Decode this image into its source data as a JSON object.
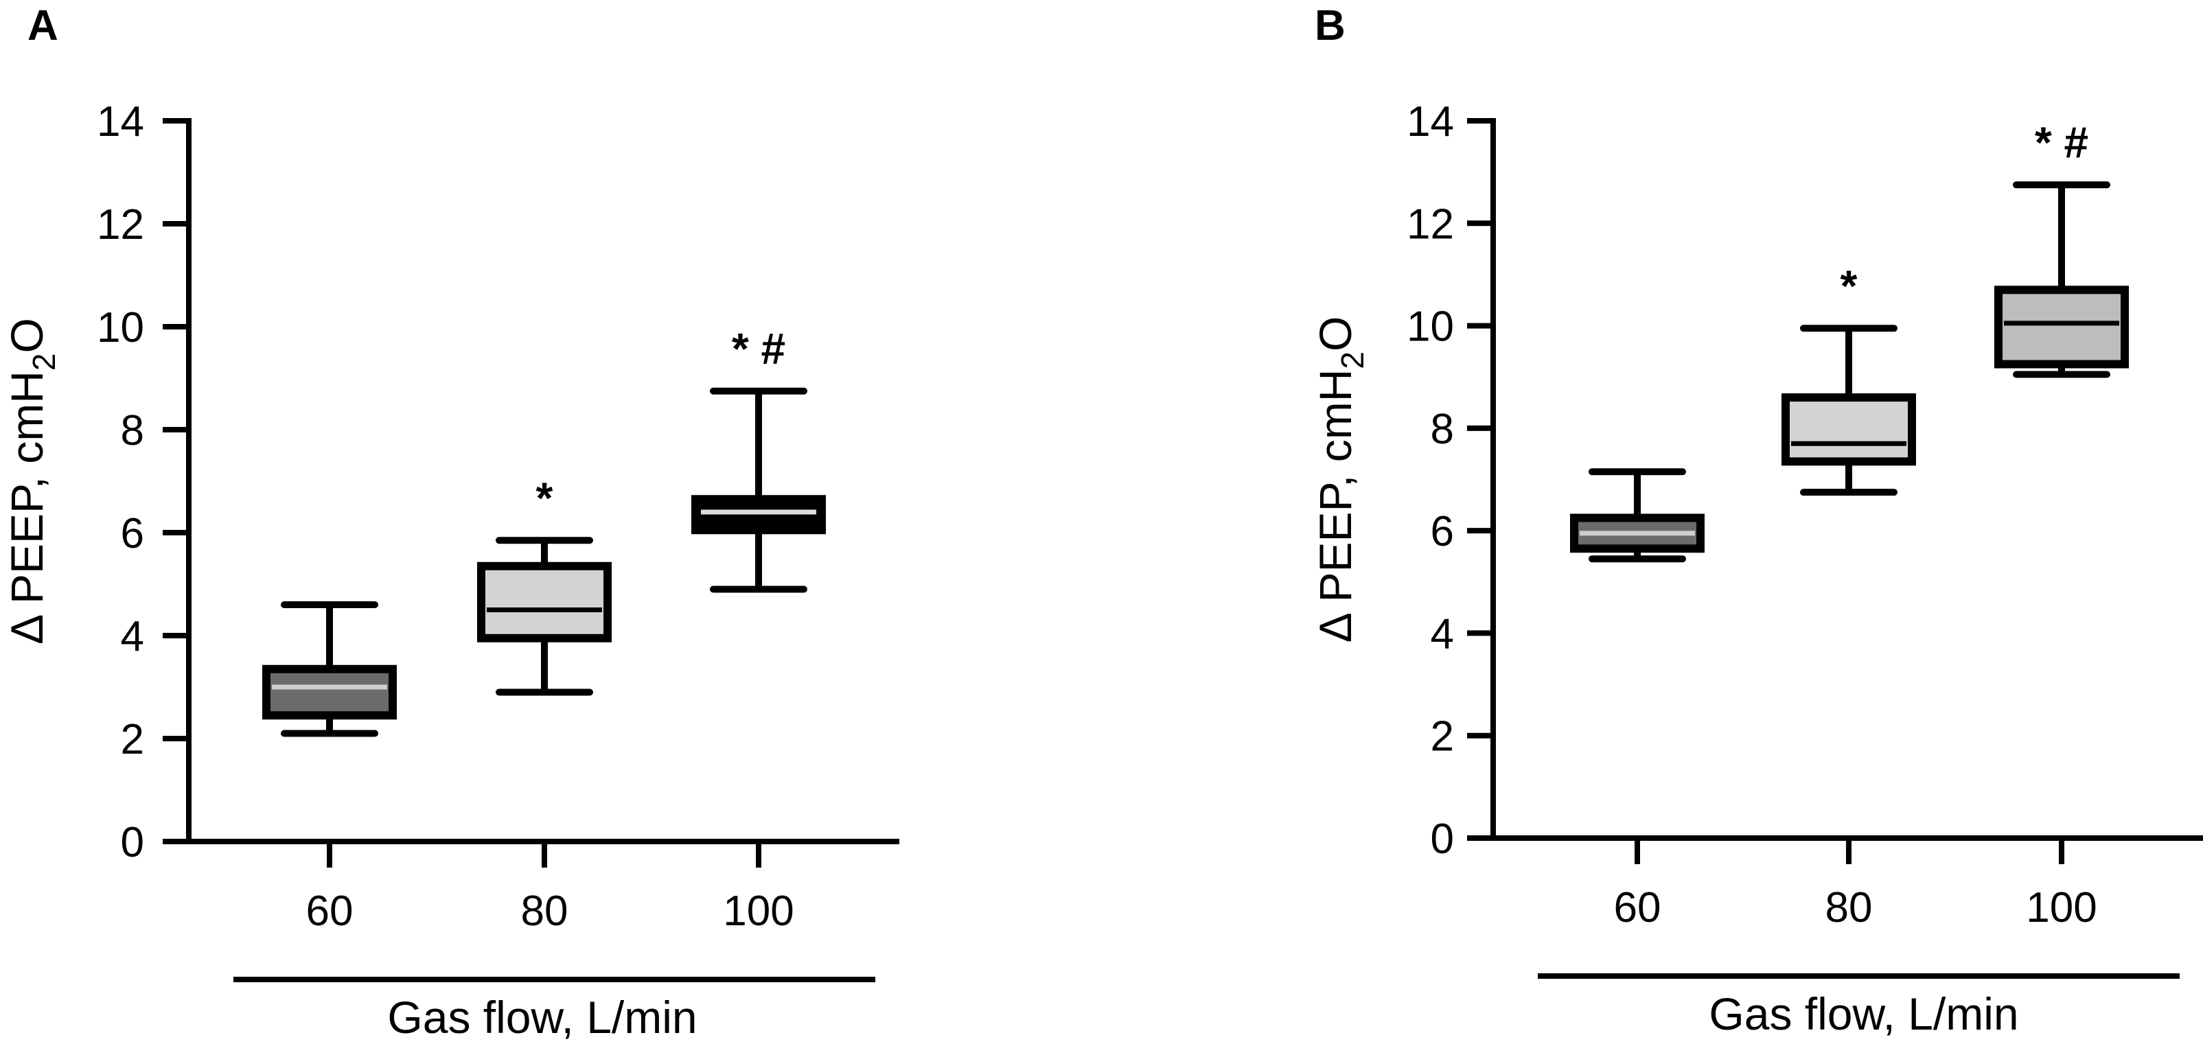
{
  "chart_data": [
    {
      "type": "box",
      "panel_label": "A",
      "categories": [
        "60",
        "80",
        "100"
      ],
      "ylabel": "Δ PEEP, cmH",
      "ylabel_sub": "2",
      "ylabel_end": "O",
      "xlabel": "Gas flow, L/min",
      "ylim": [
        0,
        14
      ],
      "yticks": [
        "0",
        "2",
        "4",
        "6",
        "8",
        "10",
        "12",
        "14"
      ],
      "grid": false,
      "boxes": [
        {
          "category": "60",
          "min": 2.1,
          "q1": 2.45,
          "median": 3.0,
          "q3": 3.35,
          "max": 4.6,
          "fill": "#6b6b6b",
          "median_color": "#cfcfcf",
          "annotation": ""
        },
        {
          "category": "80",
          "min": 2.9,
          "q1": 3.95,
          "median": 4.5,
          "q3": 5.35,
          "max": 5.85,
          "fill": "#d3d3d3",
          "median_color": "#000000",
          "annotation": "*"
        },
        {
          "category": "100",
          "min": 4.9,
          "q1": 6.05,
          "median": 6.4,
          "q3": 6.65,
          "max": 8.75,
          "fill": "#000000",
          "median_color": "#dddddd",
          "annotation": "* #"
        }
      ]
    },
    {
      "type": "box",
      "panel_label": "B",
      "categories": [
        "60",
        "80",
        "100"
      ],
      "ylabel": "Δ PEEP, cmH",
      "ylabel_sub": "2",
      "ylabel_end": "O",
      "xlabel": "Gas flow, L/min",
      "ylim": [
        0,
        14
      ],
      "yticks": [
        "0",
        "2",
        "4",
        "6",
        "8",
        "10",
        "12",
        "14"
      ],
      "grid": false,
      "boxes": [
        {
          "category": "60",
          "min": 5.45,
          "q1": 5.65,
          "median": 5.95,
          "q3": 6.25,
          "max": 7.15,
          "fill": "#6b6b6b",
          "median_color": "#cfcfcf",
          "annotation": ""
        },
        {
          "category": "80",
          "min": 6.75,
          "q1": 7.35,
          "median": 7.7,
          "q3": 8.6,
          "max": 9.95,
          "fill": "#d3d3d3",
          "median_color": "#000000",
          "annotation": "*"
        },
        {
          "category": "100",
          "min": 9.05,
          "q1": 9.25,
          "median": 10.05,
          "q3": 10.7,
          "max": 12.75,
          "fill": "#bdbdbd",
          "median_color": "#000000",
          "annotation": "* #"
        }
      ]
    }
  ]
}
